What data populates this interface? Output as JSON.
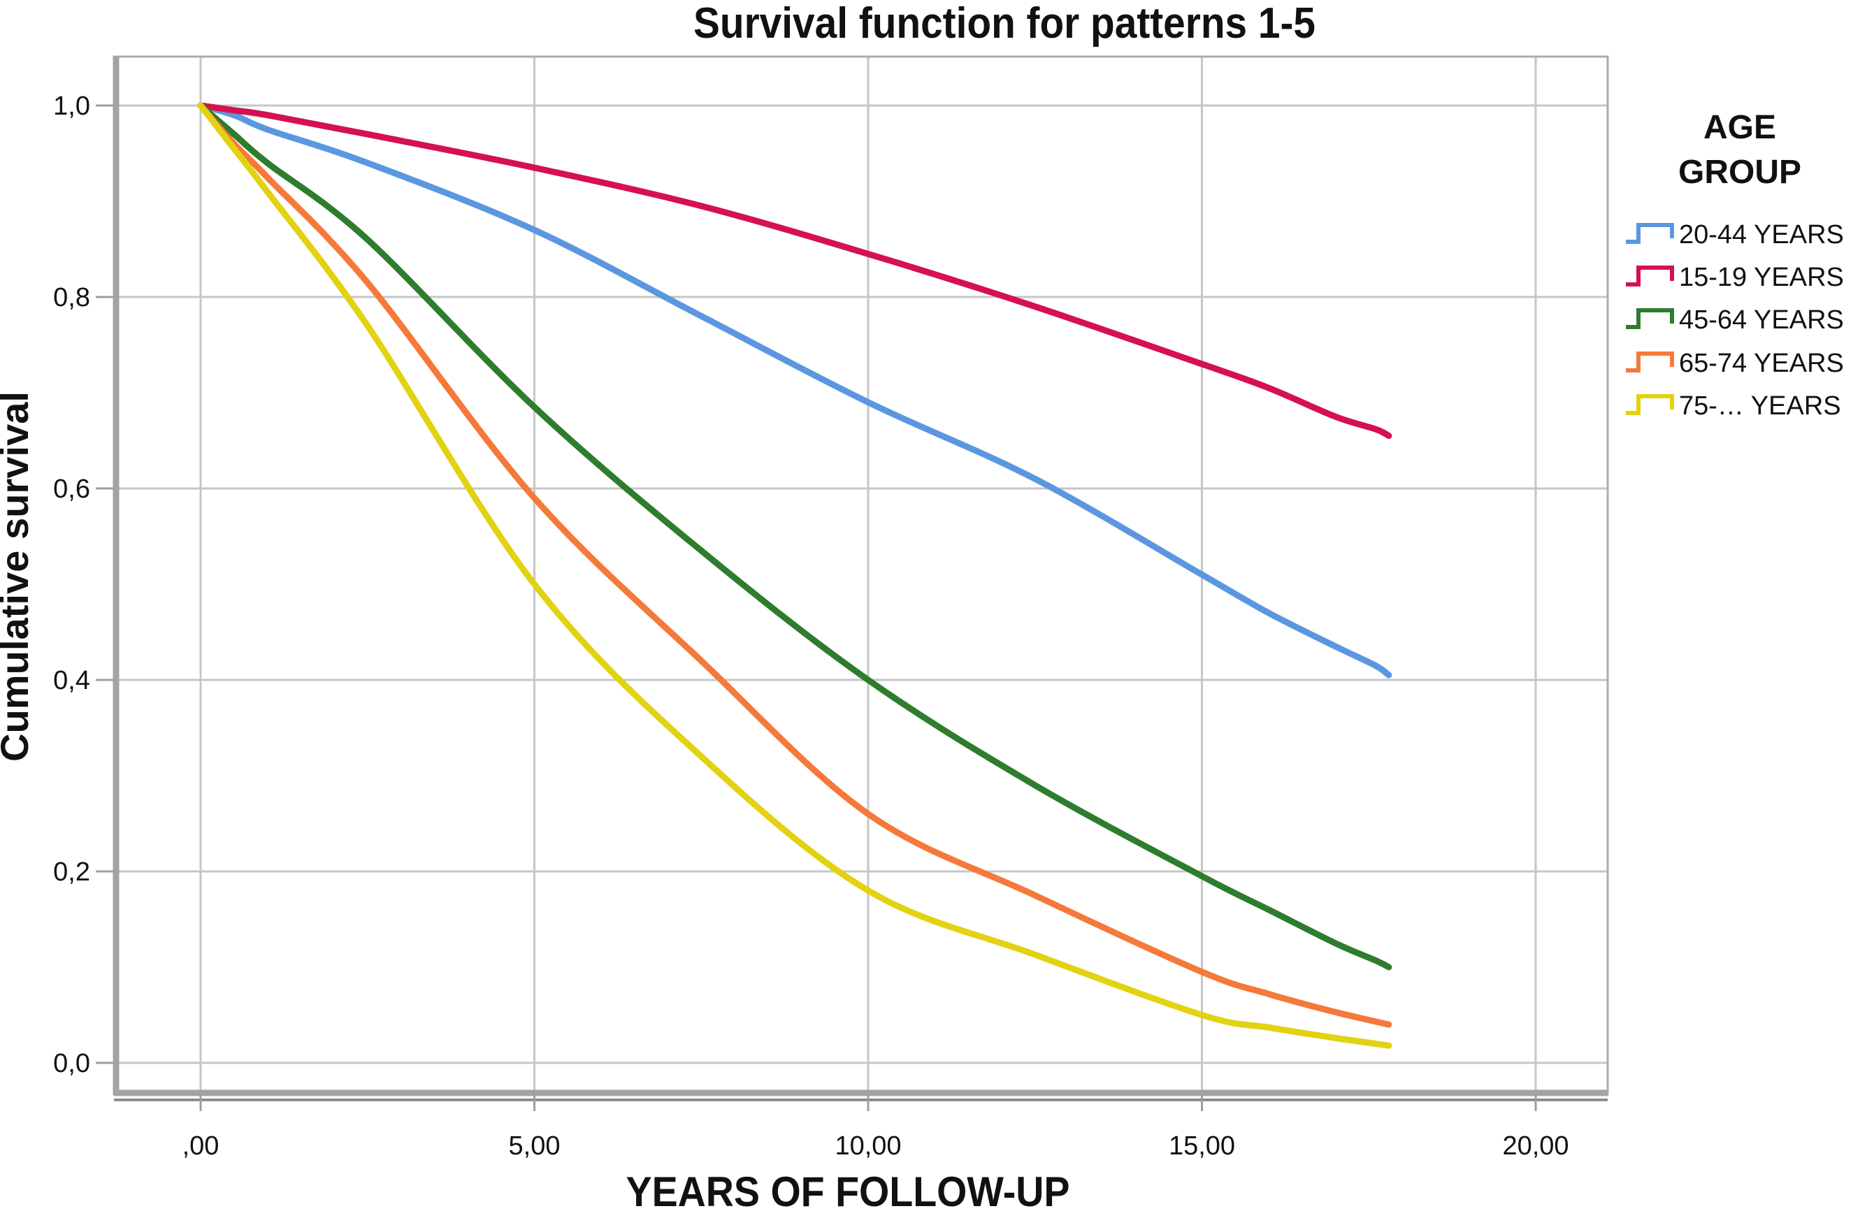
{
  "figure": {
    "background": "#FFFFFF"
  },
  "legend": {
    "title_lines": [
      "AGE",
      "GROUP"
    ],
    "entries": [
      {
        "label": "20-44 YEARS",
        "color": "#5B97E0"
      },
      {
        "label": "15-19 YEARS",
        "color": "#D5114E"
      },
      {
        "label": "45-64 YEARS",
        "color": "#2E7D2E"
      },
      {
        "label": "65-74 YEARS",
        "color": "#F5793A"
      },
      {
        "label": "75-… YEARS",
        "color": "#E2D211"
      }
    ]
  },
  "chart_data": {
    "type": "line",
    "title": "Survival function for patterns 1-5",
    "xlabel": "YEARS OF FOLLOW-UP",
    "ylabel": "Cumulative survival",
    "xlim": [
      -1.3,
      21.1
    ],
    "ylim": [
      -0.07,
      1.05
    ],
    "grid": true,
    "legend_position": "right",
    "x_ticks": {
      "values": [
        0,
        5,
        10,
        15,
        20
      ],
      "labels": [
        ",00",
        "5,00",
        "10,00",
        "15,00",
        "20,00"
      ]
    },
    "y_ticks": {
      "values": [
        1.0,
        0.8,
        0.6,
        0.4,
        0.2,
        0.0
      ],
      "labels": [
        "1,0",
        "0,8",
        "0,6",
        "0,4",
        "0,2",
        "0,0"
      ]
    },
    "series": [
      {
        "name": "20-44 YEARS",
        "color": "#5B97E0",
        "points": [
          [
            0,
            1.0
          ],
          [
            0.5,
            0.99
          ],
          [
            1,
            0.975
          ],
          [
            2.5,
            0.94
          ],
          [
            5,
            0.87
          ],
          [
            7.5,
            0.78
          ],
          [
            10,
            0.69
          ],
          [
            12.5,
            0.61
          ],
          [
            15,
            0.51
          ],
          [
            16,
            0.47
          ],
          [
            17,
            0.435
          ],
          [
            17.6,
            0.415
          ],
          [
            17.8,
            0.405
          ]
        ]
      },
      {
        "name": "15-19 YEARS",
        "color": "#D5114E",
        "points": [
          [
            0,
            1.0
          ],
          [
            0.5,
            0.995
          ],
          [
            1,
            0.99
          ],
          [
            2.5,
            0.97
          ],
          [
            5,
            0.935
          ],
          [
            7.5,
            0.895
          ],
          [
            10,
            0.845
          ],
          [
            12.5,
            0.79
          ],
          [
            15,
            0.73
          ],
          [
            16,
            0.705
          ],
          [
            17,
            0.675
          ],
          [
            17.6,
            0.662
          ],
          [
            17.8,
            0.655
          ]
        ]
      },
      {
        "name": "45-64 YEARS",
        "color": "#2E7D2E",
        "points": [
          [
            0,
            1.0
          ],
          [
            0.5,
            0.97
          ],
          [
            1,
            0.94
          ],
          [
            2.5,
            0.86
          ],
          [
            5,
            0.685
          ],
          [
            7.5,
            0.535
          ],
          [
            10,
            0.4
          ],
          [
            12.5,
            0.29
          ],
          [
            15,
            0.195
          ],
          [
            16,
            0.16
          ],
          [
            17,
            0.125
          ],
          [
            17.6,
            0.107
          ],
          [
            17.8,
            0.1
          ]
        ]
      },
      {
        "name": "65-74 YEARS",
        "color": "#F5793A",
        "points": [
          [
            0,
            1.0
          ],
          [
            0.5,
            0.96
          ],
          [
            1,
            0.925
          ],
          [
            2.5,
            0.815
          ],
          [
            5,
            0.59
          ],
          [
            7.5,
            0.42
          ],
          [
            10,
            0.26
          ],
          [
            12.5,
            0.175
          ],
          [
            15,
            0.095
          ],
          [
            16,
            0.072
          ],
          [
            17,
            0.053
          ],
          [
            17.8,
            0.04
          ]
        ]
      },
      {
        "name": "75-… YEARS",
        "color": "#E2D211",
        "points": [
          [
            0,
            1.0
          ],
          [
            0.5,
            0.955
          ],
          [
            1,
            0.91
          ],
          [
            2.5,
            0.77
          ],
          [
            5,
            0.5
          ],
          [
            7.5,
            0.32
          ],
          [
            10,
            0.18
          ],
          [
            12.5,
            0.113
          ],
          [
            15,
            0.05
          ],
          [
            16,
            0.037
          ],
          [
            17,
            0.026
          ],
          [
            17.8,
            0.018
          ]
        ]
      }
    ]
  }
}
